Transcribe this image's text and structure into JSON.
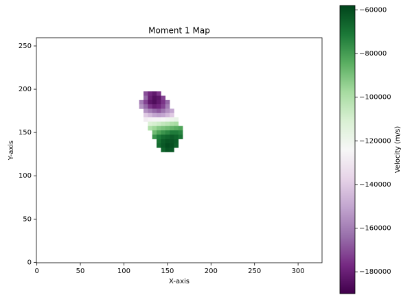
{
  "chart_data": {
    "type": "heatmap",
    "title": "Moment 1 Map",
    "xlabel": "X-axis",
    "ylabel": "Y-axis",
    "xlim": [
      -0.5,
      327.5
    ],
    "ylim": [
      -0.5,
      259.5
    ],
    "xticks": [
      0,
      50,
      100,
      150,
      200,
      250,
      300
    ],
    "yticks": [
      0,
      50,
      100,
      150,
      200,
      250
    ],
    "x": [
      120,
      125,
      130,
      135,
      140,
      145,
      150,
      155,
      160,
      165
    ],
    "y": [
      195,
      190,
      185,
      180,
      175,
      170,
      165,
      160,
      155,
      150,
      145,
      140,
      135,
      130
    ],
    "z": [
      [
        null,
        -170000,
        -178000,
        -182000,
        -175000,
        null,
        null,
        null,
        null,
        null
      ],
      [
        null,
        -165000,
        -180000,
        -185000,
        -183000,
        -172000,
        null,
        null,
        null,
        null
      ],
      [
        -160000,
        -172000,
        -183000,
        -186000,
        -182000,
        -175000,
        -165000,
        null,
        null,
        null
      ],
      [
        -155000,
        -165000,
        -175000,
        -180000,
        -178000,
        -172000,
        -160000,
        null,
        null,
        null
      ],
      [
        null,
        -155000,
        -160000,
        -165000,
        -168000,
        -162000,
        -155000,
        -150000,
        null,
        null
      ],
      [
        null,
        -140000,
        -145000,
        -150000,
        -152000,
        -150000,
        -145000,
        -140000,
        null,
        null
      ],
      [
        null,
        -128000,
        -126000,
        -125000,
        -125000,
        -124000,
        -122000,
        -120000,
        -118000,
        null
      ],
      [
        null,
        null,
        -112000,
        -110000,
        -108000,
        -105000,
        -103000,
        -100000,
        -98000,
        null
      ],
      [
        null,
        null,
        -100000,
        -96000,
        -92000,
        -90000,
        -88000,
        -86000,
        -84000,
        -82000
      ],
      [
        null,
        null,
        null,
        -88000,
        -82000,
        -78000,
        -75000,
        -72000,
        -72000,
        -74000
      ],
      [
        null,
        null,
        null,
        -78000,
        -72000,
        -68000,
        -66000,
        -64000,
        -66000,
        -70000
      ],
      [
        null,
        null,
        null,
        null,
        -70000,
        -64000,
        -62000,
        -62000,
        -64000,
        null
      ],
      [
        null,
        null,
        null,
        null,
        -68000,
        -63000,
        -60000,
        -61000,
        -65000,
        null
      ],
      [
        null,
        null,
        null,
        null,
        null,
        -66000,
        -62000,
        -63000,
        null,
        null
      ]
    ],
    "colormap": [
      "#40004b",
      "#762a83",
      "#9970ab",
      "#c2a5cf",
      "#e7d4e8",
      "#f7f7f7",
      "#d9f0d3",
      "#a6dba0",
      "#5aae61",
      "#1b7837",
      "#00441b"
    ],
    "clim": [
      -190000,
      -58000
    ],
    "colorbar_label": "Velocity (m/s)",
    "cticks": [
      {
        "value": -60000,
        "label": "−60000"
      },
      {
        "value": -80000,
        "label": "−80000"
      },
      {
        "value": -100000,
        "label": "−100000"
      },
      {
        "value": -120000,
        "label": "−120000"
      },
      {
        "value": -140000,
        "label": "−140000"
      },
      {
        "value": -160000,
        "label": "−160000"
      },
      {
        "value": -180000,
        "label": "−180000"
      }
    ]
  }
}
